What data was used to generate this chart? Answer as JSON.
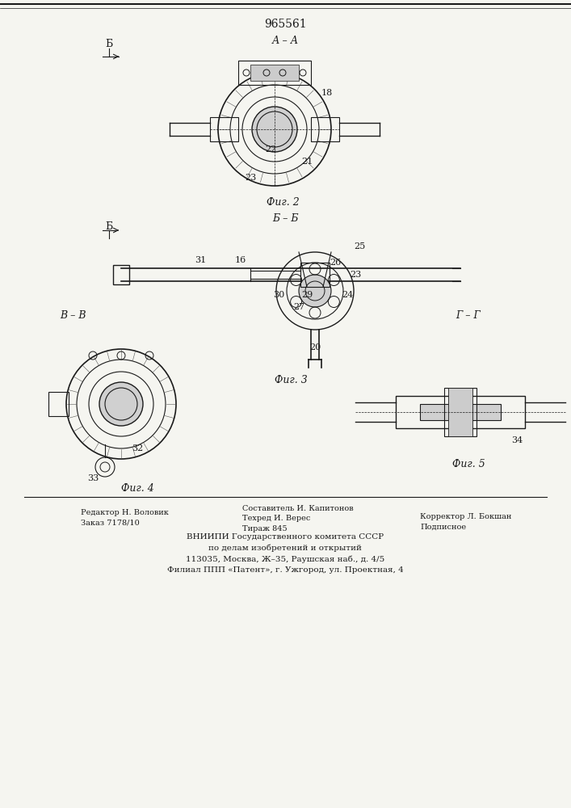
{
  "patent_number": "965561",
  "background_color": "#f5f5f0",
  "line_color": "#1a1a1a",
  "fig_labels": [
    "Фиг. 2",
    "Фиг. 3",
    "Фиг. 4",
    "Фиг. 5"
  ],
  "section_labels": [
    "А – А",
    "Б – Б",
    "В – В",
    "Г – Г"
  ],
  "footer_text_left": "Редактор Н. Воловик\nЗаказ 7178/10",
  "footer_text_center": "Составитель И. Капитонов\nТехред И. Верес\nТираж 845",
  "footer_text_right": "Корректор Л. Бокшан\nПодписное",
  "footer_org": "ВНИИПИ Государственного комитета СССР\nпо делам изобретений и открытий\n113035, Москва, Ж–35, Раушская наб., д. 4/5\nФилиал ППП «Патент», г. Ужгород, ул. Проектная, 4"
}
